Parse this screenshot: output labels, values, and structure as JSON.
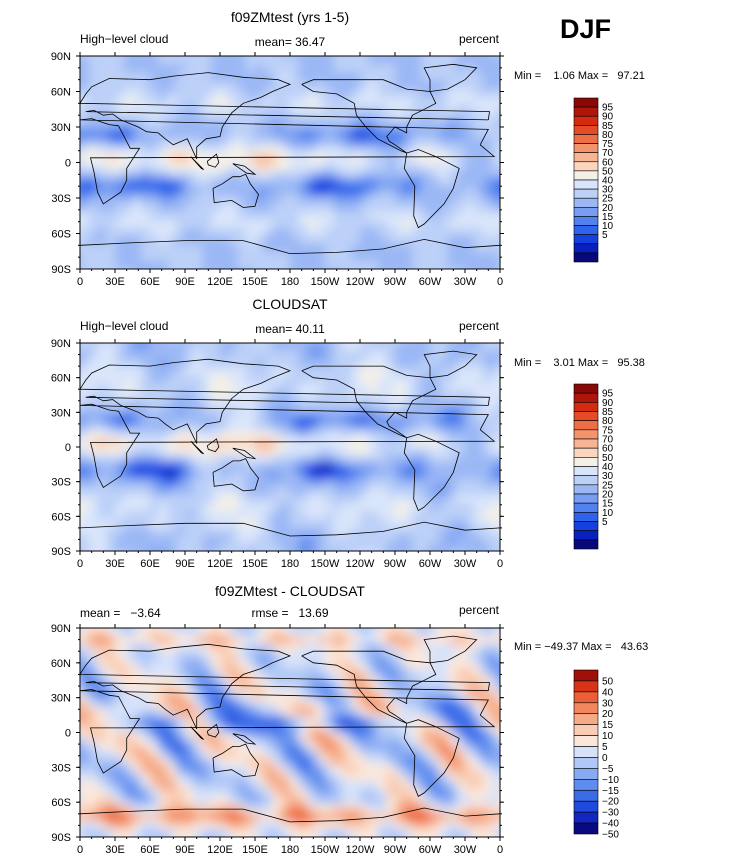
{
  "page_title": "DJF",
  "colors": {
    "abs_scale": [
      "#08087a",
      "#0a1fbf",
      "#1440e0",
      "#2f63eb",
      "#5182ef",
      "#789df2",
      "#9bb8f5",
      "#bcd0f8",
      "#d9e5fa",
      "#f5f0e6",
      "#fcd5bd",
      "#f8b595",
      "#f4946d",
      "#ee6f47",
      "#e64a26",
      "#d42a0f",
      "#b0150a",
      "#8a0806"
    ],
    "diff_scale": [
      "#0a0a80",
      "#1226c0",
      "#1f4ae0",
      "#3a6ce8",
      "#5f8cef",
      "#88aaf3",
      "#b0c8f7",
      "#d6e2fa",
      "#fbe7da",
      "#f9ccb3",
      "#f6aa87",
      "#f2865d",
      "#ec5f36",
      "#d83318",
      "#9e1008"
    ],
    "coast": "#000000",
    "frame": "#000000"
  },
  "chart_data": [
    {
      "type": "heatmap",
      "id": "model",
      "title": "f09ZMtest (yrs 1-5)",
      "left_label": "High−level cloud",
      "center_label": "mean=   36.47",
      "right_label": "percent",
      "stats_text": "Min =    1.06 Max =   97.21",
      "min": 1.06,
      "max": 97.21,
      "mean": 36.47,
      "x_ticks": [
        "0",
        "30E",
        "60E",
        "90E",
        "120E",
        "150E",
        "180",
        "150W",
        "120W",
        "90W",
        "60W",
        "30W",
        "0"
      ],
      "y_ticks": [
        "90N",
        "60N",
        "30N",
        "0",
        "30S",
        "60S",
        "90S"
      ],
      "xlim": [
        0,
        360
      ],
      "ylim": [
        -90,
        90
      ],
      "colorbar_levels": [
        "95",
        "90",
        "85",
        "80",
        "75",
        "70",
        "60",
        "50",
        "40",
        "30",
        "25",
        "20",
        "15",
        "10",
        "5"
      ]
    },
    {
      "type": "heatmap",
      "id": "obs",
      "title": "CLOUDSAT",
      "left_label": "High−level cloud",
      "center_label": "mean=   40.11",
      "right_label": "percent",
      "stats_text": "Min =    3.01 Max =   95.38",
      "min": 3.01,
      "max": 95.38,
      "mean": 40.11,
      "x_ticks": [
        "0",
        "30E",
        "60E",
        "90E",
        "120E",
        "150E",
        "180",
        "150W",
        "120W",
        "90W",
        "60W",
        "30W",
        "0"
      ],
      "y_ticks": [
        "90N",
        "60N",
        "30N",
        "0",
        "30S",
        "60S",
        "90S"
      ],
      "xlim": [
        0,
        360
      ],
      "ylim": [
        -90,
        90
      ],
      "colorbar_levels": [
        "95",
        "90",
        "85",
        "80",
        "75",
        "70",
        "60",
        "50",
        "40",
        "30",
        "25",
        "20",
        "15",
        "10",
        "5"
      ]
    },
    {
      "type": "heatmap",
      "id": "diff",
      "title": "f09ZMtest - CLOUDSAT",
      "left_label": "mean =   −3.64",
      "center_label": "rmse =   13.69",
      "right_label": "percent",
      "stats_text": "Min = −49.37 Max =   43.63",
      "min": -49.37,
      "max": 43.63,
      "mean": -3.64,
      "rmse": 13.69,
      "x_ticks": [
        "0",
        "30E",
        "60E",
        "90E",
        "120E",
        "150E",
        "180",
        "150W",
        "120W",
        "90W",
        "60W",
        "30W",
        "0"
      ],
      "y_ticks": [
        "90N",
        "60N",
        "30N",
        "0",
        "30S",
        "60S",
        "90S"
      ],
      "xlim": [
        0,
        360
      ],
      "ylim": [
        -90,
        90
      ],
      "colorbar_levels": [
        "50",
        "40",
        "30",
        "20",
        "15",
        "10",
        "5",
        "0",
        "−5",
        "−10",
        "−15",
        "−20",
        "−30",
        "−40",
        "−50"
      ]
    }
  ]
}
